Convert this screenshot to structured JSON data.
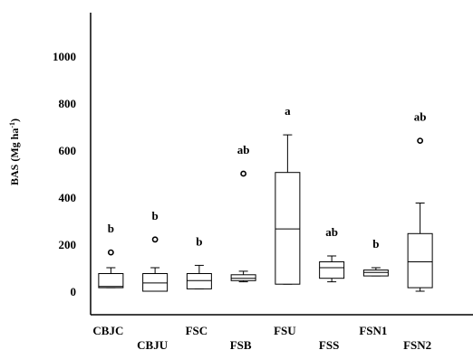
{
  "chart_data": {
    "type": "box",
    "ylabel_main": "BAS (Mg ha",
    "ylabel_sup": "-1",
    "ylabel_close": ")",
    "ylim": [
      0,
      1060
    ],
    "yticks": [
      0,
      200,
      400,
      600,
      800,
      1000
    ],
    "ytick_labels": [
      "0",
      "200",
      "400",
      "600",
      "800",
      "1000"
    ],
    "grid": false,
    "categories": [
      "CBJC",
      "CBJU",
      "FSC",
      "FSB",
      "FSU",
      "FSS",
      "FSN1",
      "FSN2"
    ],
    "label_row": [
      "upper",
      "lower",
      "upper",
      "lower",
      "upper",
      "lower",
      "upper",
      "lower"
    ],
    "boxes": [
      {
        "name": "CBJC",
        "whisker_low": 15,
        "q1": 15,
        "median": 20,
        "q3": 75,
        "whisker_high": 100,
        "outliers": [
          165
        ],
        "significance": "b"
      },
      {
        "name": "CBJU",
        "whisker_low": 0,
        "q1": 0,
        "median": 35,
        "q3": 75,
        "whisker_high": 100,
        "outliers": [
          220
        ],
        "significance": "b"
      },
      {
        "name": "FSC",
        "whisker_low": 10,
        "q1": 10,
        "median": 45,
        "q3": 75,
        "whisker_high": 110,
        "outliers": [],
        "significance": "b"
      },
      {
        "name": "FSB",
        "whisker_low": 40,
        "q1": 45,
        "median": 55,
        "q3": 70,
        "whisker_high": 85,
        "outliers": [
          500
        ],
        "significance": "ab"
      },
      {
        "name": "FSU",
        "whisker_low": 30,
        "q1": 30,
        "median": 265,
        "q3": 505,
        "whisker_high": 665,
        "outliers": [],
        "significance": "a"
      },
      {
        "name": "FSS",
        "whisker_low": 40,
        "q1": 55,
        "median": 100,
        "q3": 125,
        "whisker_high": 150,
        "outliers": [],
        "significance": "ab"
      },
      {
        "name": "FSN1",
        "whisker_low": 65,
        "q1": 65,
        "median": 80,
        "q3": 90,
        "whisker_high": 100,
        "outliers": [],
        "significance": "b"
      },
      {
        "name": "FSN2",
        "whisker_low": 0,
        "q1": 15,
        "median": 125,
        "q3": 245,
        "whisker_high": 375,
        "outliers": [
          640
        ],
        "significance": "ab"
      }
    ],
    "colors": {
      "box_fill": "#ffffff",
      "stroke": "#000000"
    }
  }
}
